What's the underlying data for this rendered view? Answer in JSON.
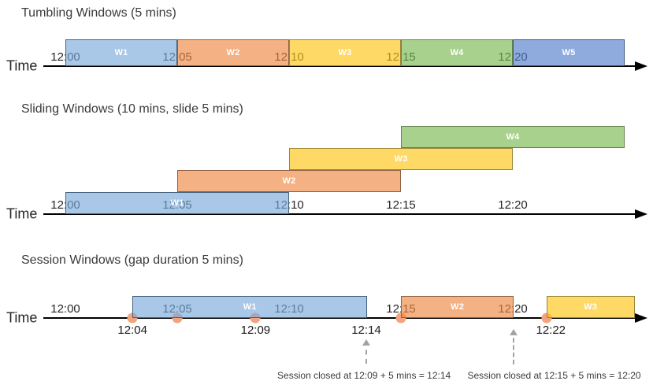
{
  "diagram": {
    "background": "#ffffff",
    "axis_color": "#000000",
    "event_dot_color": "#f2a47e",
    "annotation_arrow_color": "#a3a3a3"
  },
  "colors": {
    "blue": {
      "fill": "rgba(123,169,218,0.65)",
      "border": "#44607b"
    },
    "orange": {
      "fill": "rgba(238,135,65,0.65)",
      "border": "#8e6045"
    },
    "yellow": {
      "fill": "rgba(255,197,20,0.65)",
      "border": "#9a8538"
    },
    "green": {
      "fill": "rgba(123,185,81,0.65)",
      "border": "#64824e"
    },
    "periwinkle": {
      "fill": "rgba(83,125,201,0.65)",
      "border": "#3f5685"
    }
  },
  "sections": [
    {
      "id": "tumbling",
      "title": "Tumbling Windows (5 mins)",
      "axis_label": "Time",
      "ticks": [
        {
          "label": "12:00",
          "min": 0
        },
        {
          "label": "12:05",
          "min": 5
        },
        {
          "label": "12:10",
          "min": 10
        },
        {
          "label": "12:15",
          "min": 15
        },
        {
          "label": "12:20",
          "min": 20
        }
      ],
      "windows": [
        {
          "label": "W1",
          "color": "blue",
          "start_min": 0,
          "end_min": 5,
          "row": 0
        },
        {
          "label": "W2",
          "color": "orange",
          "start_min": 5,
          "end_min": 10,
          "row": 0
        },
        {
          "label": "W3",
          "color": "yellow",
          "start_min": 10,
          "end_min": 15,
          "row": 0
        },
        {
          "label": "W4",
          "color": "green",
          "start_min": 15,
          "end_min": 20,
          "row": 0
        },
        {
          "label": "W5",
          "color": "periwinkle",
          "start_min": 20,
          "end_min": 25,
          "row": 0
        }
      ]
    },
    {
      "id": "sliding",
      "title": "Sliding Windows (10 mins, slide 5 mins)",
      "axis_label": "Time",
      "ticks": [
        {
          "label": "12:00",
          "min": 0
        },
        {
          "label": "12:05",
          "min": 5
        },
        {
          "label": "12:10",
          "min": 10
        },
        {
          "label": "12:15",
          "min": 15
        },
        {
          "label": "12:20",
          "min": 20
        }
      ],
      "windows": [
        {
          "label": "W1",
          "color": "blue",
          "start_min": 0,
          "end_min": 10,
          "row": 0
        },
        {
          "label": "W2",
          "color": "orange",
          "start_min": 5,
          "end_min": 15,
          "row": 1
        },
        {
          "label": "W3",
          "color": "yellow",
          "start_min": 10,
          "end_min": 20,
          "row": 2
        },
        {
          "label": "W4",
          "color": "green",
          "start_min": 15,
          "end_min": 25,
          "row": 3
        }
      ]
    },
    {
      "id": "session",
      "title": "Session Windows (gap duration 5 mins)",
      "axis_label": "Time",
      "ticks": [
        {
          "label": "12:00",
          "min": 0
        },
        {
          "label": "12:05",
          "min": 5
        },
        {
          "label": "12:10",
          "min": 10
        },
        {
          "label": "12:15",
          "min": 15
        },
        {
          "label": "12:20",
          "min": 20
        }
      ],
      "windows": [
        {
          "label": "W1",
          "color": "blue",
          "start_min": 3,
          "end_min": 13.5,
          "row": 0
        },
        {
          "label": "W2",
          "color": "orange",
          "start_min": 15,
          "end_min": 20.05,
          "row": 0
        },
        {
          "label": "W3",
          "color": "yellow",
          "start_min": 21.5,
          "end_min": 25.45,
          "row": 0
        }
      ],
      "events": [
        {
          "min": 3
        },
        {
          "min": 5
        },
        {
          "min": 8.5
        },
        {
          "min": 15
        },
        {
          "min": 21.5
        }
      ],
      "event_labels": [
        {
          "label": "12:04",
          "min": 3
        },
        {
          "label": "12:09",
          "min": 8.5
        },
        {
          "label": "12:14",
          "min": 13.45
        },
        {
          "label": "12:22",
          "min": 21.7
        }
      ],
      "annotations": [
        {
          "text": "Session closed at 12:09 + 5 mins = 12:14",
          "arrow_min": 13.45,
          "text_min": 13.35
        },
        {
          "text": "Session closed at 12:15 + 5 mins = 12:20",
          "arrow_min": 20.05,
          "text_min": 21.85
        }
      ]
    }
  ]
}
